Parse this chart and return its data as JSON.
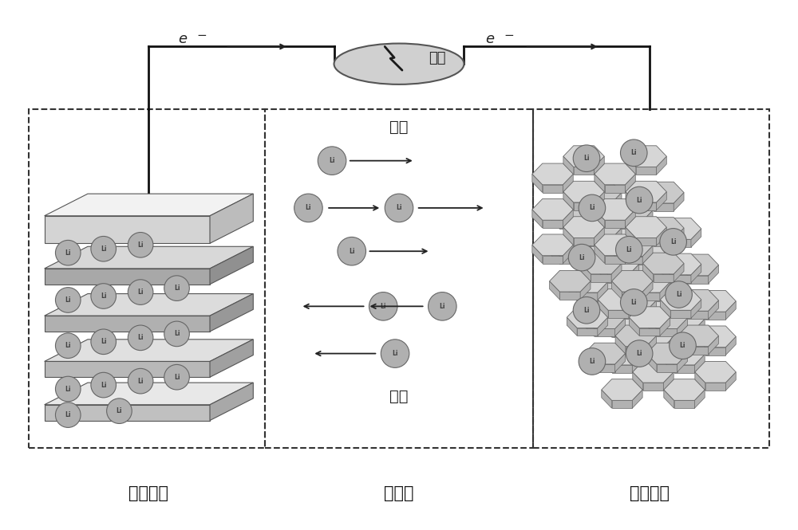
{
  "bg_color": "#ffffff",
  "label_zhengji": "正极材料",
  "label_dianjiezhi": "电解质",
  "label_fuji": "负极材料",
  "label_fuzai": "负载",
  "label_chongdian": "充电",
  "label_fangdian": "放电",
  "label_e_left": "e",
  "label_e_right": "e",
  "dashed_box_color": "#333333",
  "li_text_color": "#444444",
  "arrow_color": "#222222",
  "wire_color": "#111111",
  "load_ellipse_color": "#d0d0d0"
}
